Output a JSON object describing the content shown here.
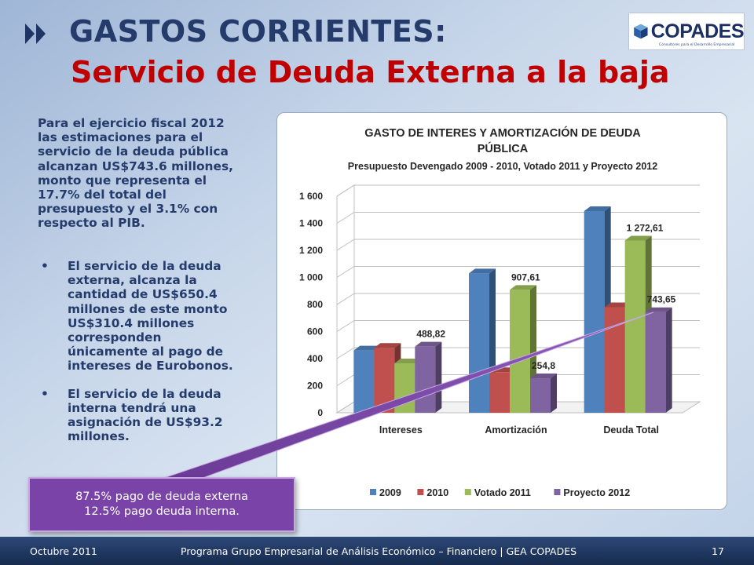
{
  "header": {
    "title_line1": "GASTOS CORRIENTES:",
    "title_line2": "Servicio de Deuda Externa a la baja"
  },
  "logo": {
    "name": "COPADES",
    "tagline": "Consultores para el Desarrollo Empresarial"
  },
  "body": {
    "intro": "Para el ejercicio fiscal 2012 las estimaciones para el servicio de la deuda pública alcanzan US$743.6 millones, monto que representa el 17.7% del total del presupuesto y el 3.1% con respecto al PIB.",
    "bullet_glyph": "•",
    "bullets": [
      "El servicio de la deuda externa, alcanza la cantidad de US$650.4 millones de este monto US$310.4 millones corresponden únicamente al pago de intereses de Eurobonos.",
      "El servicio de la deuda interna tendrá una asignación de US$93.2 millones."
    ]
  },
  "callout": {
    "line1": "87.5% pago de deuda externa",
    "line2": "12.5% pago deuda interna."
  },
  "footer": {
    "date": "Octubre 2011",
    "center": "Programa Grupo Empresarial de Análisis Económico – Financiero | GEA COPADES",
    "page": "17"
  },
  "colors": {
    "title_blue": "#243b6b",
    "title_red": "#c00000",
    "callout_purple": "#7a43a8"
  },
  "chart_data": {
    "type": "bar",
    "title": "GASTO DE INTERES Y AMORTIZACIÓN DE DEUDA PÚBLICA",
    "title_line1": "GASTO DE INTERES Y AMORTIZACIÓN DE DEUDA",
    "title_line2": "PÚBLICA",
    "subtitle": "Presupuesto Devengado 2009 - 2010, Votado 2011 y Proyecto 2012",
    "categories": [
      "Intereses",
      "Amortización",
      "Deuda Total"
    ],
    "series": [
      {
        "name": "2009",
        "values": [
          460,
          1030,
          1490
        ],
        "color": "#4f81bd"
      },
      {
        "name": "2010",
        "values": [
          480,
          300,
          780
        ],
        "color": "#c0504d"
      },
      {
        "name": "Votado 2011",
        "values": [
          365,
          907.61,
          1272.61
        ],
        "color": "#9bbb59"
      },
      {
        "name": "Proyecto 2012",
        "values": [
          488.82,
          254.8,
          743.65
        ],
        "color": "#8064a2"
      }
    ],
    "data_labels": [
      {
        "series": 3,
        "category": 0,
        "text": "488,82"
      },
      {
        "series": 2,
        "category": 1,
        "text": "907,61"
      },
      {
        "series": 3,
        "category": 1,
        "text": "254,8"
      },
      {
        "series": 2,
        "category": 2,
        "text": "1 272,61"
      },
      {
        "series": 3,
        "category": 2,
        "text": "743,65"
      }
    ],
    "y_ticks": [
      0,
      200,
      400,
      600,
      800,
      1000,
      1200,
      1400,
      1600
    ],
    "y_tick_labels": [
      "0",
      "200",
      "400",
      "600",
      "800",
      "1 000",
      "1 200",
      "1 400",
      "1 600"
    ],
    "ylim": [
      0,
      1600
    ],
    "grid": true,
    "legend_position": "bottom"
  }
}
